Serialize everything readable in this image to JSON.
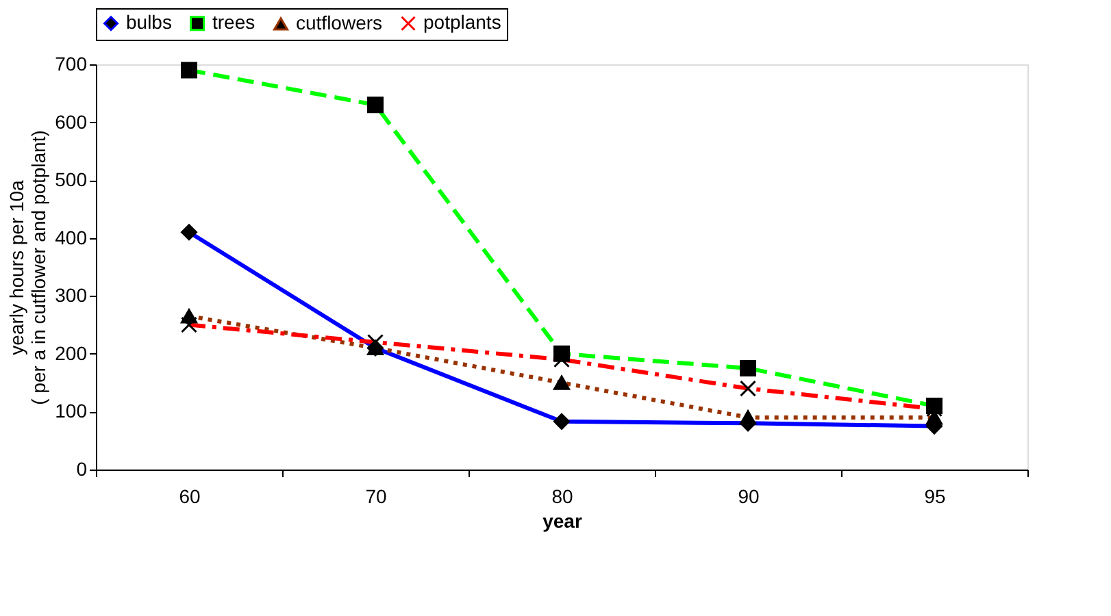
{
  "chart_data": {
    "type": "line",
    "xlabel": "year",
    "ylabel": "yearly hours per 10a\n( per a in cutflower and potplant)",
    "categories": [
      "60",
      "70",
      "80",
      "90",
      "95"
    ],
    "ylim": [
      0,
      700
    ],
    "yticks": [
      0,
      100,
      200,
      300,
      400,
      500,
      600,
      700
    ],
    "grid": false,
    "legend": "top",
    "series": [
      {
        "name": "bulbs",
        "color": "#0000ff",
        "marker": "diamond",
        "line_style": "solid",
        "values": [
          410,
          210,
          83,
          80,
          75
        ]
      },
      {
        "name": "trees",
        "color": "#00ff00",
        "marker": "square",
        "line_style": "dashed",
        "values": [
          690,
          630,
          200,
          175,
          110
        ]
      },
      {
        "name": "cutflowers",
        "color": "#993300",
        "marker": "triangle",
        "line_style": "dotted",
        "values": [
          265,
          210,
          150,
          90,
          90
        ]
      },
      {
        "name": "potplants",
        "color": "#ff0000",
        "marker": "cross",
        "line_style": "dashdot",
        "values": [
          250,
          220,
          190,
          140,
          105
        ]
      }
    ]
  }
}
